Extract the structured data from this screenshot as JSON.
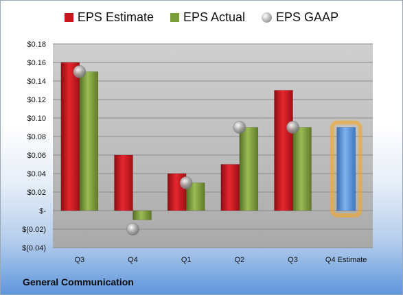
{
  "chart_data": {
    "type": "bar",
    "categories": [
      "Q3",
      "Q4",
      "Q1",
      "Q2",
      "Q3",
      "Q4 Estimate"
    ],
    "series": [
      {
        "name": "EPS Estimate",
        "values": [
          0.16,
          0.06,
          0.04,
          0.05,
          0.13,
          null
        ],
        "color": "#c8161d"
      },
      {
        "name": "EPS Actual",
        "values": [
          0.15,
          -0.01,
          0.03,
          0.09,
          0.09,
          null
        ],
        "color": "#7a9e35"
      },
      {
        "name": "EPS GAAP",
        "values": [
          0.15,
          -0.02,
          0.03,
          0.09,
          0.09,
          null
        ],
        "color": "#a8a8a8",
        "marker": "circle"
      },
      {
        "name": "Q4 Estimate",
        "values": [
          null,
          null,
          null,
          null,
          null,
          0.09
        ],
        "color": "#4f8fd8",
        "highlight": "#f5a623"
      }
    ],
    "ylim": [
      -0.04,
      0.18
    ],
    "yticks": [
      -0.04,
      -0.02,
      0,
      0.02,
      0.04,
      0.06,
      0.08,
      0.1,
      0.12,
      0.14,
      0.16,
      0.18
    ],
    "ytick_labels": [
      "$(0.04)",
      "$(0.02)",
      "$-",
      "$0.02",
      "$0.04",
      "$0.06",
      "$0.08",
      "$0.10",
      "$0.12",
      "$0.14",
      "$0.16",
      "$0.18"
    ],
    "grid": true,
    "legend": "top-center"
  },
  "legend": {
    "estimate": "EPS Estimate",
    "actual": "EPS Actual",
    "gaap": "EPS GAAP"
  },
  "company": "General Communication"
}
